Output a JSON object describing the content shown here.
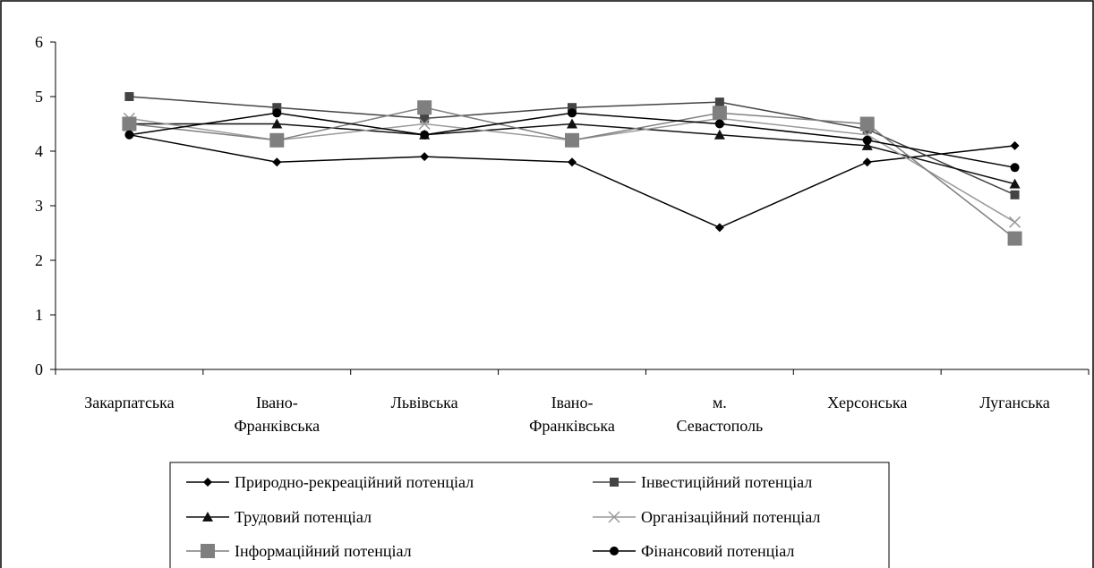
{
  "chart_data": {
    "type": "line",
    "title": "",
    "xlabel": "",
    "ylabel": "",
    "ylim": [
      0,
      6
    ],
    "yticks": [
      0,
      1,
      2,
      3,
      4,
      5,
      6
    ],
    "grid": false,
    "legend_position": "bottom",
    "categories": [
      [
        "Закарпатська"
      ],
      [
        "Івано-",
        "Франківська"
      ],
      [
        "Львівська"
      ],
      [
        "Івано-",
        "Франківська"
      ],
      [
        "м.",
        "Севастополь"
      ],
      [
        "Херсонська"
      ],
      [
        "Луганська"
      ]
    ],
    "series": [
      {
        "name": "Природно-рекреаційний потенціал",
        "marker": "diamond",
        "color": "#000000",
        "values": [
          4.3,
          3.8,
          3.9,
          3.8,
          2.6,
          3.8,
          4.1
        ]
      },
      {
        "name": "Інвестиційний потенціал",
        "marker": "square-small",
        "color": "#444444",
        "values": [
          5.0,
          4.8,
          4.6,
          4.8,
          4.9,
          4.4,
          3.2
        ]
      },
      {
        "name": "Трудовий потенціал",
        "marker": "triangle",
        "color": "#111111",
        "values": [
          4.5,
          4.5,
          4.3,
          4.5,
          4.3,
          4.1,
          3.4
        ]
      },
      {
        "name": "Організаційний потенціал",
        "marker": "x",
        "color": "#9a9a9a",
        "values": [
          4.6,
          4.2,
          4.5,
          4.2,
          4.6,
          4.3,
          2.7
        ]
      },
      {
        "name": "Інформаційний потенціал",
        "marker": "square-large",
        "color": "#7f7f7f",
        "values": [
          4.5,
          4.2,
          4.8,
          4.2,
          4.7,
          4.5,
          2.4
        ]
      },
      {
        "name": "Фінансовий потенціал",
        "marker": "circle",
        "color": "#000000",
        "values": [
          4.3,
          4.7,
          4.3,
          4.7,
          4.5,
          4.2,
          3.7
        ]
      }
    ]
  }
}
